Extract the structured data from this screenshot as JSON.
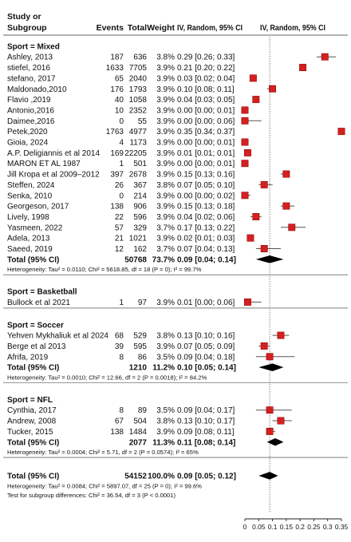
{
  "header": {
    "col_study_line1": "Study or",
    "col_study_line2": "Subgroup",
    "col_events": "Events",
    "col_total": "Total",
    "col_weight": "Weight",
    "col_iv_random": "IV, Random, 95% CI",
    "plot_header": "IV, Random, 95% CI"
  },
  "colors": {
    "square": "#d42020",
    "square_edge": "#8b0000",
    "diamond": "#000000",
    "ci_line": "#555555",
    "dotted_line": "#666666",
    "text": "#111111"
  },
  "chart_data": {
    "type": "forest",
    "x_axis": {
      "min": 0,
      "max": 0.35,
      "ticks": [
        0,
        0.05,
        0.1,
        0.15,
        0.2,
        0.25,
        0.3,
        0.35
      ],
      "tick_labels": [
        "0",
        "0.05",
        "0.1",
        "0.15",
        "0.2",
        "0.25",
        "0.3",
        "0.35"
      ],
      "reference_line": 0.09
    },
    "subgroups": [
      {
        "title": "Sport = Mixed",
        "studies": [
          {
            "name": "Ashley, 2013",
            "events": "187",
            "total": "636",
            "weight": "3.8%",
            "ci_text": "0.29 [0.26; 0.33]",
            "est": 0.29,
            "lo": 0.26,
            "hi": 0.33
          },
          {
            "name": "stiefel, 2016",
            "events": "1633",
            "total": "7705",
            "weight": "3.9%",
            "ci_text": "0.21 [0.20; 0.22]",
            "est": 0.21,
            "lo": 0.2,
            "hi": 0.22
          },
          {
            "name": "stefano, 2017",
            "events": "65",
            "total": "2040",
            "weight": "3.9%",
            "ci_text": "0.03 [0.02; 0.04]",
            "est": 0.03,
            "lo": 0.02,
            "hi": 0.04
          },
          {
            "name": "Maldonado,2010",
            "events": "176",
            "total": "1793",
            "weight": "3.9%",
            "ci_text": "0.10 [0.08; 0.11]",
            "est": 0.1,
            "lo": 0.08,
            "hi": 0.11
          },
          {
            "name": "Flavio ,2019",
            "events": "40",
            "total": "1058",
            "weight": "3.9%",
            "ci_text": "0.04 [0.03; 0.05]",
            "est": 0.04,
            "lo": 0.03,
            "hi": 0.05
          },
          {
            "name": "Antonio,2016",
            "events": "10",
            "total": "2352",
            "weight": "3.9%",
            "ci_text": "0.00 [0.00; 0.01]",
            "est": 0.0,
            "lo": 0.0,
            "hi": 0.01
          },
          {
            "name": "Daimee,2016",
            "events": "0",
            "total": "55",
            "weight": "3.9%",
            "ci_text": "0.00 [0.00; 0.06]",
            "est": 0.0,
            "lo": 0.0,
            "hi": 0.06
          },
          {
            "name": "Petek,2020",
            "events": "1763",
            "total": "4977",
            "weight": "3.9%",
            "ci_text": "0.35 [0.34; 0.37]",
            "est": 0.35,
            "lo": 0.34,
            "hi": 0.37
          },
          {
            "name": "Gioia, 2024",
            "events": "4",
            "total": "1173",
            "weight": "3.9%",
            "ci_text": "0.00 [0.00; 0.01]",
            "est": 0.0,
            "lo": 0.0,
            "hi": 0.01
          },
          {
            "name": "A.P. Deligiannis et al 2014",
            "events": "169",
            "total": "22205",
            "weight": "3.9%",
            "ci_text": "0.01 [0.01; 0.01]",
            "est": 0.01,
            "lo": 0.01,
            "hi": 0.01
          },
          {
            "name": "MARON ET AL 1987",
            "events": "1",
            "total": "501",
            "weight": "3.9%",
            "ci_text": "0.00 [0.00; 0.01]",
            "est": 0.0,
            "lo": 0.0,
            "hi": 0.01
          },
          {
            "name": "Jill Kropa et al 2009–2012",
            "events": "397",
            "total": "2678",
            "weight": "3.9%",
            "ci_text": "0.15 [0.13; 0.16]",
            "est": 0.15,
            "lo": 0.13,
            "hi": 0.16
          },
          {
            "name": "Steffen, 2024",
            "events": "26",
            "total": "367",
            "weight": "3.8%",
            "ci_text": "0.07 [0.05; 0.10]",
            "est": 0.07,
            "lo": 0.05,
            "hi": 0.1
          },
          {
            "name": "Senka, 2010",
            "events": "0",
            "total": "214",
            "weight": "3.9%",
            "ci_text": "0.00 [0.00; 0.02]",
            "est": 0.0,
            "lo": 0.0,
            "hi": 0.02
          },
          {
            "name": "Georgeson, 2017",
            "events": "138",
            "total": "906",
            "weight": "3.9%",
            "ci_text": "0.15 [0.13; 0.18]",
            "est": 0.15,
            "lo": 0.13,
            "hi": 0.18
          },
          {
            "name": "Lively, 1998",
            "events": "22",
            "total": "596",
            "weight": "3.9%",
            "ci_text": "0.04 [0.02; 0.06]",
            "est": 0.04,
            "lo": 0.02,
            "hi": 0.06
          },
          {
            "name": "Yasmeen, 2022",
            "events": "57",
            "total": "329",
            "weight": "3.7%",
            "ci_text": "0.17 [0.13; 0.22]",
            "est": 0.17,
            "lo": 0.13,
            "hi": 0.22
          },
          {
            "name": "Adela, 2013",
            "events": "21",
            "total": "1021",
            "weight": "3.9%",
            "ci_text": "0.02 [0.01; 0.03]",
            "est": 0.02,
            "lo": 0.01,
            "hi": 0.03
          },
          {
            "name": "Saeed, 2019",
            "events": "12",
            "total": "162",
            "weight": "3.7%",
            "ci_text": "0.07 [0.04; 0.13]",
            "est": 0.07,
            "lo": 0.04,
            "hi": 0.13
          }
        ],
        "pooled": {
          "label": "Total (95% CI)",
          "total": "50768",
          "weight": "73.7%",
          "ci_text": "0.09 [0.04; 0.14]",
          "est": 0.09,
          "lo": 0.04,
          "hi": 0.14
        },
        "heterogeneity": "Heterogeneity: Tau² = 0.0110; Chi² = 5618.85, df = 18 (P = 0); I² = 99.7%"
      },
      {
        "title": "Sport = Basketball",
        "studies": [
          {
            "name": "Bullock et al 2021",
            "events": "1",
            "total": "97",
            "weight": "3.9%",
            "ci_text": "0.01 [0.00; 0.06]",
            "est": 0.01,
            "lo": 0.0,
            "hi": 0.06
          }
        ]
      },
      {
        "title": "Sport = Soccer",
        "studies": [
          {
            "name": "Yehven Mykhaliuk et al 2024",
            "events": "68",
            "total": "529",
            "weight": "3.8%",
            "ci_text": "0.13 [0.10; 0.16]",
            "est": 0.13,
            "lo": 0.1,
            "hi": 0.16
          },
          {
            "name": "Berge et al 2013",
            "events": "39",
            "total": "595",
            "weight": "3.9%",
            "ci_text": "0.07 [0.05; 0.09]",
            "est": 0.07,
            "lo": 0.05,
            "hi": 0.09
          },
          {
            "name": "Afrifa, 2019",
            "events": "8",
            "total": "86",
            "weight": "3.5%",
            "ci_text": "0.09 [0.04; 0.18]",
            "est": 0.09,
            "lo": 0.04,
            "hi": 0.18
          }
        ],
        "pooled": {
          "label": "Total (95% CI)",
          "total": "1210",
          "weight": "11.2%",
          "ci_text": "0.10 [0.05; 0.14]",
          "est": 0.1,
          "lo": 0.05,
          "hi": 0.14
        },
        "heterogeneity": "Heterogeneity: Tau² = 0.0010; Chi² = 12.66, df = 2 (P = 0.0018); I² = 84.2%"
      },
      {
        "title": "Sport = NFL",
        "studies": [
          {
            "name": "Cynthia, 2017",
            "events": "8",
            "total": "89",
            "weight": "3.5%",
            "ci_text": "0.09 [0.04; 0.17]",
            "est": 0.09,
            "lo": 0.04,
            "hi": 0.17
          },
          {
            "name": "Andrew, 2008",
            "events": "67",
            "total": "504",
            "weight": "3.8%",
            "ci_text": "0.13 [0.10; 0.17]",
            "est": 0.13,
            "lo": 0.1,
            "hi": 0.17
          },
          {
            "name": "Tucker, 2015",
            "events": "138",
            "total": "1484",
            "weight": "3.9%",
            "ci_text": "0.09 [0.08; 0.11]",
            "est": 0.09,
            "lo": 0.08,
            "hi": 0.11
          }
        ],
        "pooled": {
          "label": "Total (95% CI)",
          "total": "2077",
          "weight": "11.3%",
          "ci_text": "0.11 [0.08; 0.14]",
          "est": 0.11,
          "lo": 0.08,
          "hi": 0.14
        },
        "heterogeneity": "Heterogeneity: Tau² = 0.0004; Chi² = 5.71, df = 2 (P = 0.0574); I² = 65%"
      }
    ],
    "overall": {
      "label": "Total (95% CI)",
      "total": "54152",
      "weight": "100.0%",
      "ci_text": "0.09 [0.05; 0.12]",
      "est": 0.09,
      "lo": 0.05,
      "hi": 0.12,
      "heterogeneity": "Heterogeneity: Tau² = 0.0084; Chi² = 5897.07, df = 25 (P = 0); I² = 99.6%",
      "subgroup_test": "Test for subgroup differences: Chi² = 36.54, df = 3 (P < 0.0001)"
    }
  }
}
